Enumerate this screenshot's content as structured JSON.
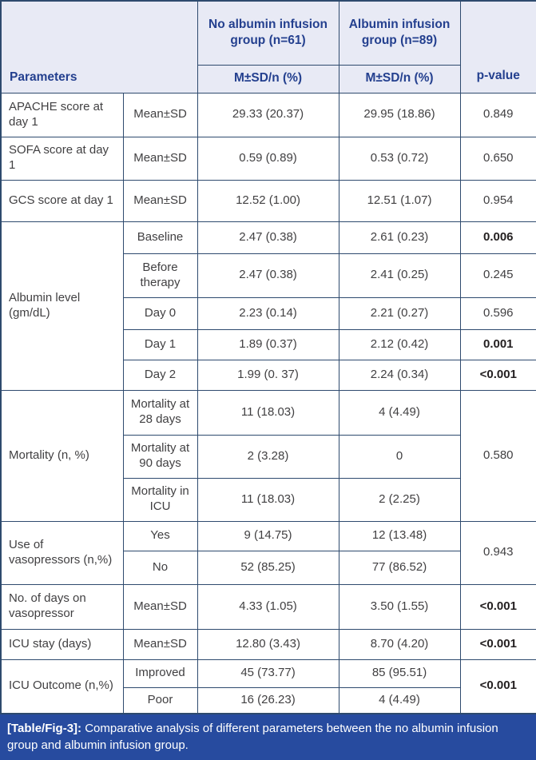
{
  "colors": {
    "header_bg": "#E8EAF5",
    "header_text": "#24408F",
    "border": "#2E4A6E",
    "body_text": "#414042",
    "caption_bg": "#274B9F",
    "caption_text": "#FFFFFF"
  },
  "table": {
    "header": {
      "parameters_label": "Parameters",
      "group1_label": "No albumin infusion group (n=61)",
      "group1_sub": "M±SD/n (%)",
      "group2_label": "Albumin infusion group (n=89)",
      "group2_sub": "M±SD/n (%)",
      "pvalue_label": "p-value"
    },
    "sections": [
      {
        "param": "APACHE score at day 1",
        "subrows": [
          {
            "label": "Mean±SD",
            "no_albumin": "29.33 (20.37)",
            "albumin": "29.95 (18.86)",
            "p_value": "0.849",
            "p_bold": false
          }
        ]
      },
      {
        "param": "SOFA score at day 1",
        "subrows": [
          {
            "label": "Mean±SD",
            "no_albumin": "0.59 (0.89)",
            "albumin": "0.53 (0.72)",
            "p_value": "0.650",
            "p_bold": false
          }
        ]
      },
      {
        "param": "GCS score at day 1",
        "subrows": [
          {
            "label": "Mean±SD",
            "no_albumin": "12.52 (1.00)",
            "albumin": "12.51 (1.07)",
            "p_value": "0.954",
            "p_bold": false
          }
        ]
      },
      {
        "param": "Albumin level (gm/dL)",
        "subrows": [
          {
            "label": "Baseline",
            "no_albumin": "2.47 (0.38)",
            "albumin": "2.61 (0.23)",
            "p_value": "0.006",
            "p_bold": true
          },
          {
            "label": "Before therapy",
            "no_albumin": "2.47 (0.38)",
            "albumin": "2.41 (0.25)",
            "p_value": "0.245",
            "p_bold": false
          },
          {
            "label": "Day 0",
            "no_albumin": "2.23 (0.14)",
            "albumin": "2.21 (0.27)",
            "p_value": "0.596",
            "p_bold": false
          },
          {
            "label": "Day 1",
            "no_albumin": "1.89 (0.37)",
            "albumin": "2.12 (0.42)",
            "p_value": "0.001",
            "p_bold": true
          },
          {
            "label": "Day 2",
            "no_albumin": "1.99 (0. 37)",
            "albumin": "2.24 (0.34)",
            "p_value": "<0.001",
            "p_bold": true
          }
        ]
      },
      {
        "param": "Mortality (n, %)",
        "shared_p": "0.580",
        "shared_p_bold": false,
        "subrows": [
          {
            "label": "Mortality at 28 days",
            "no_albumin": "11 (18.03)",
            "albumin": "4 (4.49)"
          },
          {
            "label": "Mortality at 90 days",
            "no_albumin": "2 (3.28)",
            "albumin": "0"
          },
          {
            "label": "Mortality in ICU",
            "no_albumin": "11 (18.03)",
            "albumin": "2 (2.25)"
          }
        ]
      },
      {
        "param": "Use of vasopressors (n,%)",
        "shared_p": "0.943",
        "shared_p_bold": false,
        "subrows": [
          {
            "label": "Yes",
            "no_albumin": "9 (14.75)",
            "albumin": "12 (13.48)"
          },
          {
            "label": "No",
            "no_albumin": "52 (85.25)",
            "albumin": "77 (86.52)"
          }
        ]
      },
      {
        "param": "No. of days on vasopressor",
        "subrows": [
          {
            "label": "Mean±SD",
            "no_albumin": "4.33 (1.05)",
            "albumin": "3.50 (1.55)",
            "p_value": "<0.001",
            "p_bold": true
          }
        ]
      },
      {
        "param": "ICU stay (days)",
        "subrows": [
          {
            "label": "Mean±SD",
            "no_albumin": "12.80 (3.43)",
            "albumin": "8.70 (4.20)",
            "p_value": "<0.001",
            "p_bold": true
          }
        ]
      },
      {
        "param": "ICU Outcome (n,%)",
        "shared_p": "<0.001",
        "shared_p_bold": true,
        "subrows": [
          {
            "label": "Improved",
            "no_albumin": "45 (73.77)",
            "albumin": "85 (95.51)"
          },
          {
            "label": "Poor",
            "no_albumin": "16 (26.23)",
            "albumin": "4 (4.49)"
          }
        ]
      }
    ]
  },
  "caption": {
    "tag": "[Table/Fig-3]:",
    "text": "Comparative analysis of different parameters between the no albumin infusion group and albumin infusion group."
  }
}
